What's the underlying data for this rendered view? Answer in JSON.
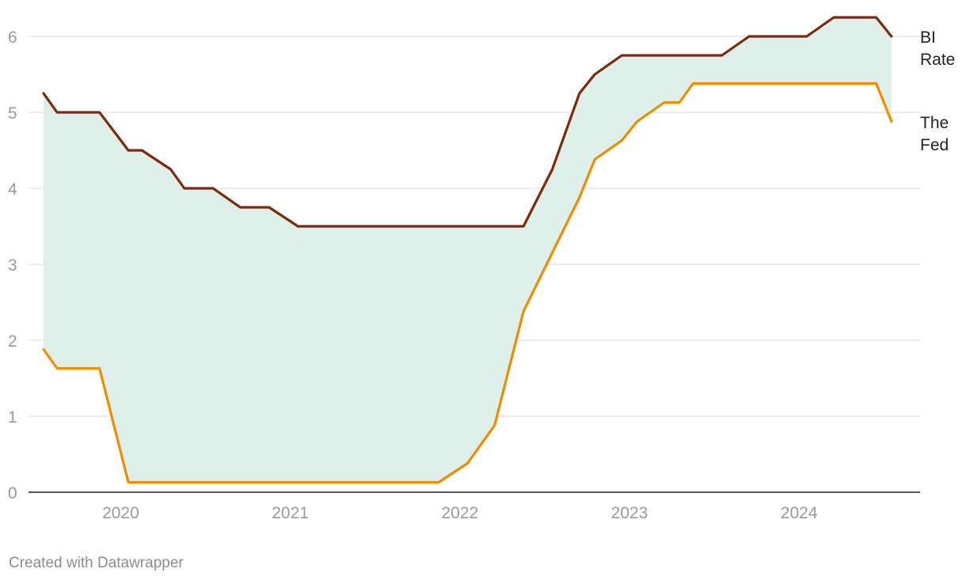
{
  "chart_data": {
    "type": "line",
    "title": "",
    "xlabel": "",
    "ylabel": "",
    "xlim": [
      2019.67,
      2024.75
    ],
    "ylim": [
      0,
      6.5
    ],
    "y_ticks": [
      0,
      1,
      2,
      3,
      4,
      5,
      6
    ],
    "x_ticks": [
      2020,
      2021,
      2022,
      2023,
      2024
    ],
    "y_tick_labels": [
      "0",
      "1",
      "2",
      "3",
      "4",
      "5",
      "6"
    ],
    "x_tick_labels": [
      "2020",
      "2021",
      "2022",
      "2023",
      "2024"
    ],
    "grid": true,
    "band_between_series": true,
    "colors": {
      "bi_rate": "#7b2a0c",
      "fed": "#f08c00",
      "band": "#dff0ea",
      "grid": "#e2e2e2",
      "axis": "#222222"
    },
    "series": [
      {
        "name": "BI Rate",
        "label_lines": [
          "BI",
          "Rate"
        ],
        "x": [
          2019.67,
          2019.75,
          2020.0,
          2020.17,
          2020.25,
          2020.42,
          2020.5,
          2020.67,
          2020.83,
          2021.0,
          2021.17,
          2021.5,
          2022.0,
          2022.5,
          2022.67,
          2022.83,
          2022.92,
          2023.08,
          2023.5,
          2023.67,
          2023.83,
          2024.17,
          2024.33,
          2024.58,
          2024.67
        ],
        "values": [
          5.25,
          5.0,
          5.0,
          4.5,
          4.5,
          4.25,
          4.0,
          4.0,
          3.75,
          3.75,
          3.5,
          3.5,
          3.5,
          3.5,
          4.25,
          5.25,
          5.5,
          5.75,
          5.75,
          5.75,
          6.0,
          6.0,
          6.25,
          6.25,
          6.0
        ]
      },
      {
        "name": "The Fed",
        "label_lines": [
          "The",
          "Fed"
        ],
        "x": [
          2019.67,
          2019.75,
          2020.0,
          2020.17,
          2020.5,
          2021.0,
          2021.5,
          2022.0,
          2022.17,
          2022.33,
          2022.5,
          2022.83,
          2022.92,
          2023.08,
          2023.17,
          2023.33,
          2023.42,
          2023.5,
          2024.0,
          2024.58,
          2024.67
        ],
        "values": [
          1.88,
          1.63,
          1.63,
          0.13,
          0.13,
          0.13,
          0.13,
          0.13,
          0.38,
          0.88,
          2.38,
          3.88,
          4.38,
          4.63,
          4.88,
          5.13,
          5.13,
          5.38,
          5.38,
          5.38,
          4.88
        ]
      }
    ]
  },
  "footer": {
    "credit": "Created with Datawrapper"
  }
}
